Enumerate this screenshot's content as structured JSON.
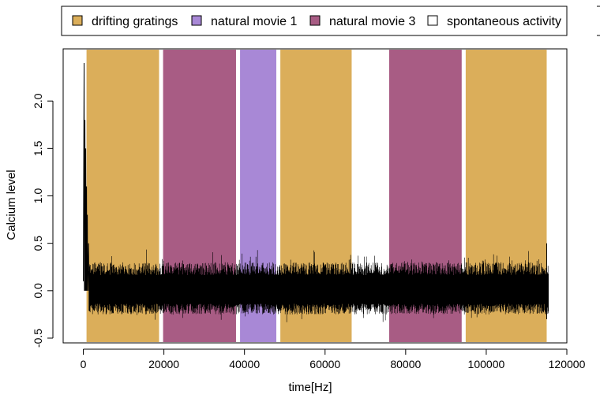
{
  "chart_data": {
    "type": "line",
    "title": "",
    "xlabel": "time[Hz]",
    "ylabel": "Calcium level",
    "xlim": [
      -5000,
      120000
    ],
    "ylim": [
      -0.55,
      2.55
    ],
    "x_ticks": [
      0,
      20000,
      40000,
      60000,
      80000,
      100000,
      120000
    ],
    "x_tick_labels": [
      "0",
      "20000",
      "40000",
      "60000",
      "80000",
      "100000",
      "120000"
    ],
    "y_ticks": [
      -0.5,
      0.0,
      0.5,
      1.0,
      1.5,
      2.0
    ],
    "y_tick_labels": [
      "-0.5",
      "0.0",
      "0.5",
      "1.0",
      "1.5",
      "2.0"
    ],
    "grid": false,
    "legend_position": "top",
    "legend": [
      {
        "label": "drifting gratings",
        "color": "#DBAE5A"
      },
      {
        "label": "natural movie 1",
        "color": "#A888D6"
      },
      {
        "label": "natural movie 3",
        "color": "#A85C84"
      },
      {
        "label": "spontaneous activity",
        "color": "#FFFFFF"
      }
    ],
    "stimulus_epochs": [
      {
        "stimulus": "drifting gratings",
        "start": 800,
        "end": 18800
      },
      {
        "stimulus": "natural movie 3",
        "start": 19800,
        "end": 37900
      },
      {
        "stimulus": "natural movie 1",
        "start": 38900,
        "end": 47900
      },
      {
        "stimulus": "drifting gratings",
        "start": 48900,
        "end": 66600
      },
      {
        "stimulus": "natural movie 3",
        "start": 75900,
        "end": 93900
      },
      {
        "stimulus": "drifting gratings",
        "start": 94900,
        "end": 115000
      }
    ],
    "series": [
      {
        "name": "calcium trace",
        "color": "#000000",
        "x_range": [
          0,
          115500
        ],
        "baseline": 0.0,
        "typical_range": [
          -0.25,
          0.3
        ],
        "min": -0.4,
        "initial_transient": [
          {
            "x": 200,
            "y": 2.4
          },
          {
            "x": 400,
            "y": 1.8
          },
          {
            "x": 600,
            "y": 1.5
          },
          {
            "x": 800,
            "y": 1.1
          },
          {
            "x": 1000,
            "y": 0.8
          },
          {
            "x": 1300,
            "y": 0.5
          }
        ],
        "end_spike": {
          "x": 115000,
          "y": 0.5
        }
      }
    ]
  }
}
